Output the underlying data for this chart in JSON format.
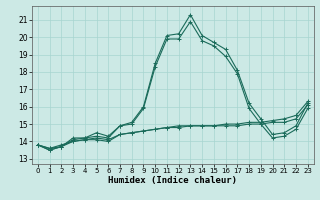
{
  "xlabel": "Humidex (Indice chaleur)",
  "xlim": [
    -0.5,
    23.5
  ],
  "ylim": [
    12.7,
    21.8
  ],
  "yticks": [
    13,
    14,
    15,
    16,
    17,
    18,
    19,
    20,
    21
  ],
  "xticks": [
    0,
    1,
    2,
    3,
    4,
    5,
    6,
    7,
    8,
    9,
    10,
    11,
    12,
    13,
    14,
    15,
    16,
    17,
    18,
    19,
    20,
    21,
    22,
    23
  ],
  "bg_color": "#cce9e5",
  "grid_color": "#a8d5d0",
  "line_color": "#1a6b5a",
  "series": [
    [
      13.8,
      13.5,
      13.7,
      14.2,
      14.2,
      14.5,
      14.3,
      14.9,
      15.1,
      16.0,
      18.5,
      20.1,
      20.2,
      21.3,
      20.1,
      19.7,
      19.3,
      18.1,
      16.2,
      15.3,
      14.4,
      14.5,
      14.9,
      16.2
    ],
    [
      13.8,
      13.5,
      13.7,
      14.1,
      14.2,
      14.3,
      14.2,
      14.9,
      15.0,
      15.9,
      18.3,
      19.9,
      19.9,
      20.9,
      19.8,
      19.5,
      18.9,
      17.9,
      15.9,
      15.0,
      14.2,
      14.3,
      14.7,
      15.9
    ],
    [
      13.8,
      13.6,
      13.7,
      14.0,
      14.1,
      14.1,
      14.0,
      14.4,
      14.5,
      14.6,
      14.7,
      14.8,
      14.9,
      14.9,
      14.9,
      14.9,
      15.0,
      15.0,
      15.1,
      15.1,
      15.2,
      15.3,
      15.5,
      16.3
    ],
    [
      13.8,
      13.6,
      13.8,
      14.0,
      14.1,
      14.2,
      14.1,
      14.4,
      14.5,
      14.6,
      14.7,
      14.8,
      14.8,
      14.9,
      14.9,
      14.9,
      14.9,
      14.9,
      15.0,
      15.0,
      15.1,
      15.1,
      15.3,
      16.1
    ]
  ]
}
